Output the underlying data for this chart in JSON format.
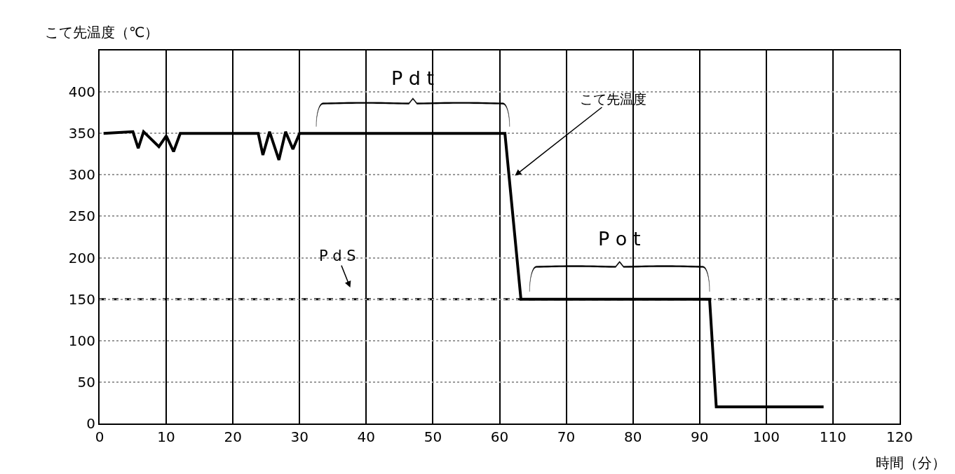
{
  "chart_data": {
    "type": "line",
    "xlabel": "時間（分）",
    "ylabel": "こて先温度（℃）",
    "xlim": [
      0,
      120
    ],
    "xticks": [
      0,
      10,
      20,
      30,
      40,
      50,
      60,
      70,
      80,
      90,
      100,
      110,
      120
    ],
    "ylim": [
      0,
      450
    ],
    "yticks": [
      0,
      50,
      100,
      150,
      200,
      250,
      300,
      350,
      400
    ],
    "grid": true,
    "marker": "none",
    "line_style": "solid",
    "series": [
      {
        "color": "#000000",
        "x": [
          0.6,
          5.0,
          5.8,
          6.6,
          8.9,
          10.0,
          11.1,
          12.1,
          23.8,
          24.5,
          25.5,
          26.9,
          27.9,
          29.0,
          30.0,
          60.8,
          63.2,
          91.5,
          92.5,
          108.6
        ],
        "values": [
          350,
          352,
          332,
          352,
          334,
          347,
          328,
          350,
          350,
          324,
          352,
          318,
          352,
          331,
          350,
          350,
          150,
          150,
          20,
          20
        ]
      }
    ],
    "ref_lines": [
      {
        "axis": "y",
        "value": 150,
        "color": "#000000",
        "line_style": "dashed"
      }
    ],
    "annotations": [
      "P d t",
      "P o t",
      "P d S",
      "こて先温度"
    ]
  }
}
